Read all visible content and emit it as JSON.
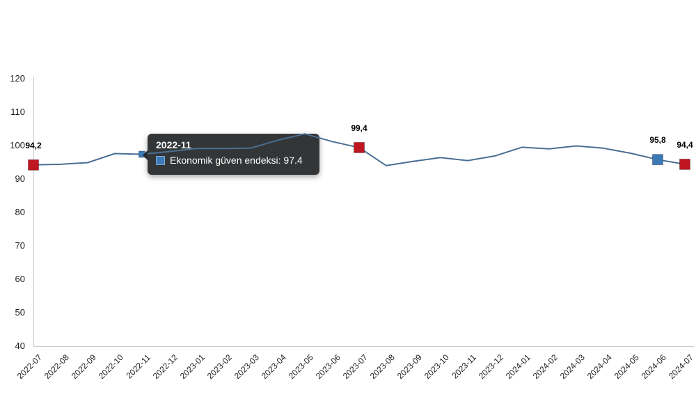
{
  "chart_data": {
    "type": "line",
    "title": "",
    "series_name": "Ekonomik güven endeksi",
    "x": [
      "2022-07",
      "2022-08",
      "2022-09",
      "2022-10",
      "2022-11",
      "2022-12",
      "2023-01",
      "2023-02",
      "2023-03",
      "2023-04",
      "2023-05",
      "2023-06",
      "2023-07",
      "2023-08",
      "2023-09",
      "2023-10",
      "2023-11",
      "2023-12",
      "2024-01",
      "2024-02",
      "2024-03",
      "2024-04",
      "2024-05",
      "2024-06",
      "2024-07"
    ],
    "values": [
      94.2,
      94.4,
      94.9,
      97.6,
      97.4,
      98.2,
      99.1,
      99.1,
      99.2,
      101.6,
      103.5,
      101.2,
      99.4,
      94.0,
      95.3,
      96.4,
      95.5,
      96.9,
      99.5,
      99.0,
      99.9,
      99.2,
      97.7,
      95.8,
      94.4
    ],
    "ylim": [
      40,
      120
    ],
    "yticks": [
      120,
      110,
      100,
      90,
      80,
      70,
      60,
      50,
      40
    ],
    "grid": false,
    "legend_position": "none",
    "xlabel": "",
    "ylabel": "",
    "line_color": "#4a6f93",
    "axis_color": "#cccccc",
    "marker_colors": {
      "red": "#c01622",
      "blue": "#3c7ab7"
    },
    "markers": [
      {
        "month": "2022-07",
        "value": 94.2,
        "color": "red",
        "label": "94,2",
        "small": false
      },
      {
        "month": "2022-11",
        "value": 97.4,
        "color": "blue",
        "label": "",
        "small": true
      },
      {
        "month": "2023-07",
        "value": 99.4,
        "color": "red",
        "label": "99,4",
        "small": false
      },
      {
        "month": "2024-06",
        "value": 95.8,
        "color": "blue",
        "label": "95,8",
        "small": false
      },
      {
        "month": "2024-07",
        "value": 94.4,
        "color": "red",
        "label": "94,4",
        "small": false
      }
    ],
    "tooltip": {
      "title": "2022-11",
      "body": "Ekonomik güven endeksi: 97.4",
      "swatch_color": "#3c7ab7"
    }
  }
}
